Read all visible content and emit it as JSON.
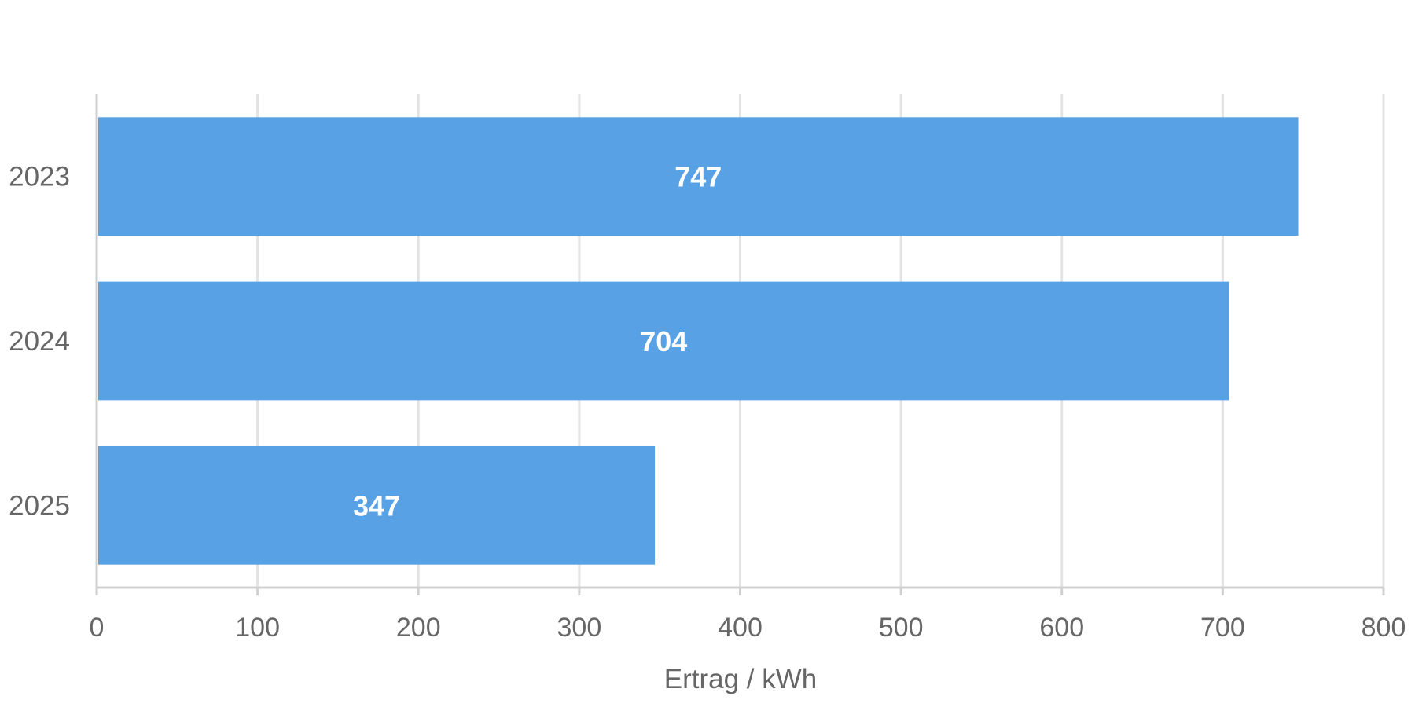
{
  "chart_data": {
    "type": "bar",
    "orientation": "horizontal",
    "title": "",
    "xlabel": "Ertrag / kWh",
    "ylabel": "",
    "categories": [
      "2023",
      "2024",
      "2025"
    ],
    "values": [
      747,
      704,
      347
    ],
    "xlim": [
      0,
      800
    ],
    "xticks": [
      0,
      100,
      200,
      300,
      400,
      500,
      600,
      700,
      800
    ],
    "grid": true,
    "legend": "none",
    "colors": {
      "bar": "#58a1e5",
      "label": "#ffffff",
      "text": "#666666"
    }
  }
}
